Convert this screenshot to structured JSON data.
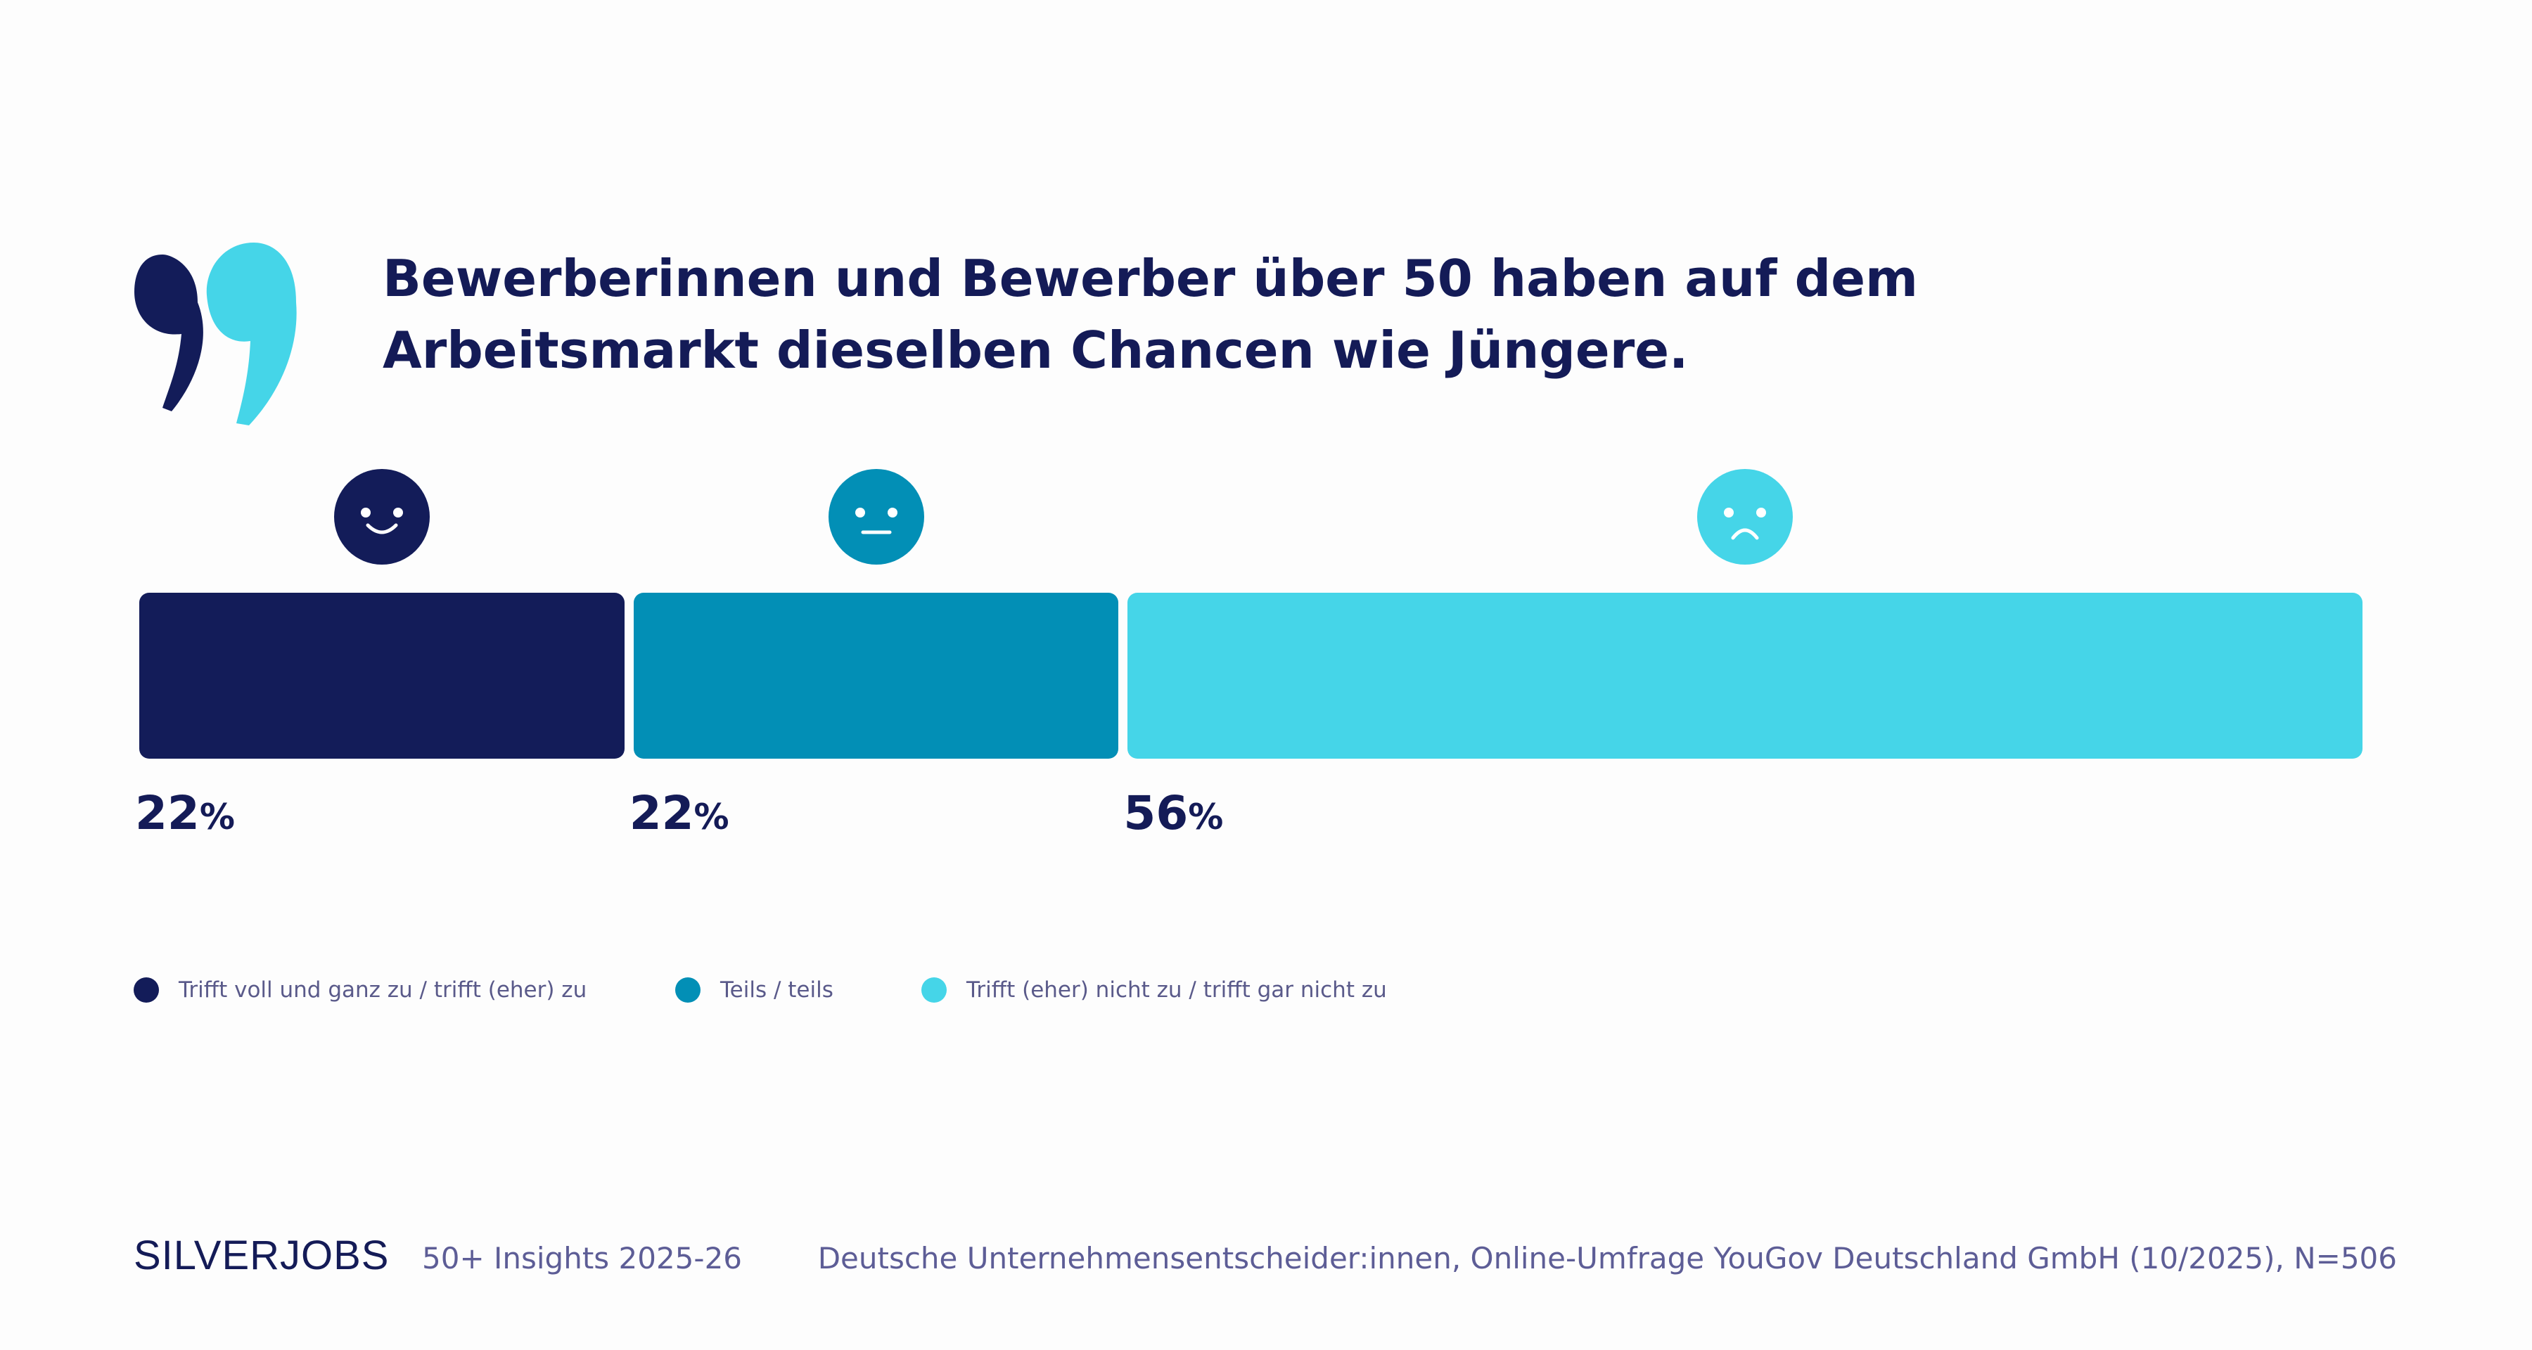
{
  "title": "Bewerberinnen und Bewerber über 50 haben auf dem Arbeitsmarkt dieselben Chancen wie Jüngere.",
  "chart_data": {
    "type": "bar",
    "stacked": true,
    "orientation": "horizontal",
    "title": "Bewerberinnen und Bewerber über 50 haben auf dem Arbeitsmarkt dieselben Chancen wie Jüngere.",
    "unit": "%",
    "series": [
      {
        "name": "Trifft voll und ganz zu / trifft (eher) zu",
        "value": 22,
        "label": "22",
        "color": "#131c59",
        "icon": "smiley-happy-icon"
      },
      {
        "name": "Teils / teils",
        "value": 22,
        "label": "22",
        "color": "#028fb6",
        "icon": "smiley-neutral-icon"
      },
      {
        "name": "Trifft (eher) nicht zu / trifft gar nicht zu",
        "value": 56,
        "label": "56",
        "color": "#45d5e8",
        "icon": "smiley-sad-icon"
      }
    ],
    "percent_sign": "%",
    "legend_position": "bottom-left"
  },
  "footer": {
    "logo": "SILVERJOBS",
    "publication": "50+ Insights 2025-26",
    "source": "Deutsche Unternehmensentscheider:innen, Online-Umfrage YouGov Deutschland GmbH (10/2025), N=506"
  }
}
